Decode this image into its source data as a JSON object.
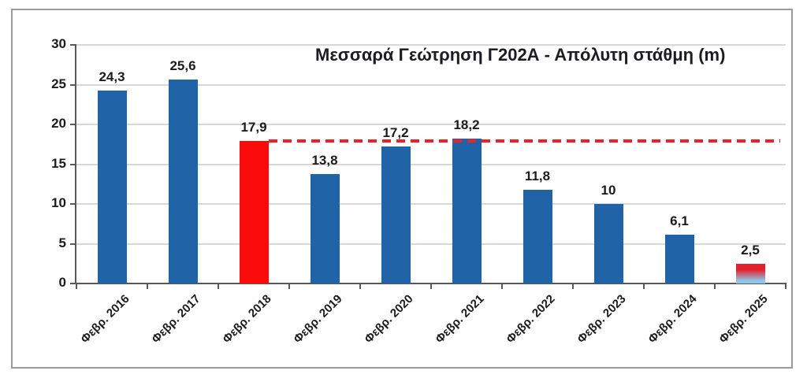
{
  "chart_data": {
    "type": "bar",
    "title": "Μεσσαρά Γεώτρηση Γ202Α - Απόλυτη στάθμη (m)",
    "xlabel": "",
    "ylabel": "",
    "categories": [
      "Φεβρ. 2016",
      "Φεβρ. 2017",
      "Φεβρ. 2018",
      "Φεβρ. 2019",
      "Φεβρ. 2020",
      "Φεβρ. 2021",
      "Φεβρ. 2022",
      "Φεβρ. 2023",
      "Φεβρ. 2024",
      "Φεβρ. 2025"
    ],
    "values": [
      24.3,
      25.6,
      17.9,
      13.8,
      17.2,
      18.2,
      11.8,
      10,
      6.1,
      2.5
    ],
    "value_labels": [
      "24,3",
      "25,6",
      "17,9",
      "13,8",
      "17,2",
      "18,2",
      "11,8",
      "10",
      "6,1",
      "2,5"
    ],
    "bar_styles": [
      "blue",
      "blue",
      "red",
      "blue",
      "blue",
      "blue",
      "blue",
      "blue",
      "blue",
      "gradient"
    ],
    "y_ticks": [
      0,
      5,
      10,
      15,
      20,
      25,
      30
    ],
    "ylim": [
      0,
      30
    ],
    "grid": true,
    "legend": "none",
    "reference_line": {
      "value": 17.9,
      "style": "dashed",
      "start_category": "Φεβρ. 2018",
      "start_category_index": 2
    },
    "colors": {
      "bar_blue": "#2064a7",
      "bar_red": "#fb0a0a",
      "gradient_top": "#e3202b",
      "gradient_bottom": "#90c6e9",
      "reference_line": "#ed2228",
      "axis": "#595959",
      "gridline": "#d8d8d8",
      "text": "#1b1b1b"
    }
  }
}
